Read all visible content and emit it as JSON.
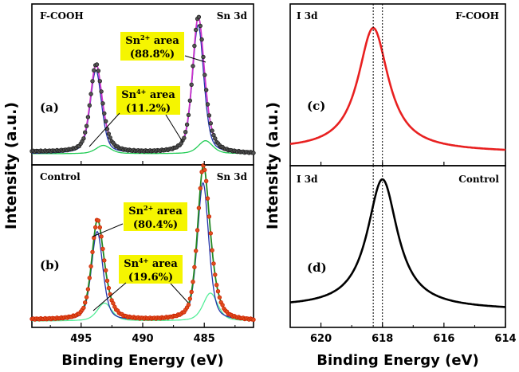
{
  "chart_data": [
    {
      "type": "line",
      "panel": "(a)",
      "sample": "F-COOH",
      "core_level": "Sn 3d",
      "x_direction": "reversed",
      "xlim": [
        499,
        481
      ],
      "ylim": [
        0,
        1.08
      ],
      "xlabel": "Binding Energy (eV)",
      "ylabel": "Intensity (a.u.)",
      "x_ticks": [
        495,
        490,
        485
      ],
      "peaks": {
        "sn3d3_2": 493.8,
        "sn3d5_2": 485.5
      },
      "series": [
        {
          "name": "experimental",
          "style": "dots",
          "color": "#202020"
        },
        {
          "name": "fit envelope",
          "style": "line",
          "color": "#cc33cc"
        },
        {
          "name": "Sn2+ component",
          "style": "line",
          "color": "#2233aa"
        },
        {
          "name": "Sn4+ component",
          "style": "line",
          "color": "#22cc55"
        }
      ],
      "annotations": [
        {
          "species": "Sn",
          "charge": "2+",
          "word": "area",
          "value": "(88.8%)"
        },
        {
          "species": "Sn",
          "charge": "4+",
          "word": "area",
          "value": "(11.2%)"
        }
      ]
    },
    {
      "type": "line",
      "panel": "(b)",
      "sample": "Control",
      "core_level": "Sn 3d",
      "x_direction": "reversed",
      "xlim": [
        499,
        481
      ],
      "ylim": [
        0,
        1.08
      ],
      "xlabel": "Binding Energy (eV)",
      "ylabel": "Intensity (a.u.)",
      "x_ticks": [
        495,
        490,
        485
      ],
      "peaks": {
        "sn3d3_2": 493.7,
        "sn3d5_2": 485.1
      },
      "series": [
        {
          "name": "experimental",
          "style": "dots",
          "color": "#cc2200"
        },
        {
          "name": "fit envelope",
          "style": "line",
          "color": "#228822"
        },
        {
          "name": "Sn2+ component",
          "style": "line",
          "color": "#2233aa"
        },
        {
          "name": "Sn4+ component",
          "style": "line",
          "color": "#55ee99"
        }
      ],
      "annotations": [
        {
          "species": "Sn",
          "charge": "2+",
          "word": "area",
          "value": "(80.4%)"
        },
        {
          "species": "Sn",
          "charge": "4+",
          "word": "area",
          "value": "(19.6%)"
        }
      ]
    },
    {
      "type": "line",
      "panel": "(c)",
      "sample": "F-COOH",
      "core_level": "I 3d",
      "x_direction": "reversed",
      "xlim": [
        621,
        614
      ],
      "ylim": [
        0,
        1.08
      ],
      "xlabel": "Binding Energy (eV)",
      "ylabel": "Intensity (a.u.)",
      "x_ticks": [
        620,
        618,
        616,
        614
      ],
      "peak_center": 618.3,
      "reference_lines": [
        618.3,
        618.0
      ],
      "series": [
        {
          "name": "I 3d F-COOH",
          "style": "line",
          "color": "#e82020"
        }
      ]
    },
    {
      "type": "line",
      "panel": "(d)",
      "sample": "Control",
      "core_level": "I 3d",
      "x_direction": "reversed",
      "xlim": [
        621,
        614
      ],
      "ylim": [
        0,
        1.08
      ],
      "xlabel": "Binding Energy (eV)",
      "ylabel": "Intensity (a.u.)",
      "x_ticks": [
        620,
        618,
        616,
        614
      ],
      "peak_center": 618.0,
      "reference_lines": [
        618.3,
        618.0
      ],
      "series": [
        {
          "name": "I 3d Control",
          "style": "line",
          "color": "#000000"
        }
      ]
    }
  ],
  "labels": {
    "ylabel": "Intensity (a.u.)",
    "xlabel_left": "Binding Energy (eV)",
    "xlabel_right": "Binding Energy (eV)",
    "a": {
      "panel": "(a)",
      "sample": "F-COOH",
      "core": "Sn 3d"
    },
    "b": {
      "panel": "(b)",
      "sample": "Control",
      "core": "Sn 3d"
    },
    "c": {
      "panel": "(c)",
      "sample": "F-COOH",
      "core": "I 3d"
    },
    "d": {
      "panel": "(d)",
      "sample": "Control",
      "core": "I 3d"
    },
    "ann_a2": {
      "sp": "Sn",
      "ch": "2+",
      "w": " area",
      "v": "(88.8%)"
    },
    "ann_a4": {
      "sp": "Sn",
      "ch": "4+",
      "w": " area",
      "v": "(11.2%)"
    },
    "ann_b2": {
      "sp": "Sn",
      "ch": "2+",
      "w": " area",
      "v": "(80.4%)"
    },
    "ann_b4": {
      "sp": "Sn",
      "ch": "4+",
      "w": " area",
      "v": "(19.6%)"
    }
  },
  "colors": {
    "highlight": "#f5f500",
    "axis": "#000000"
  }
}
